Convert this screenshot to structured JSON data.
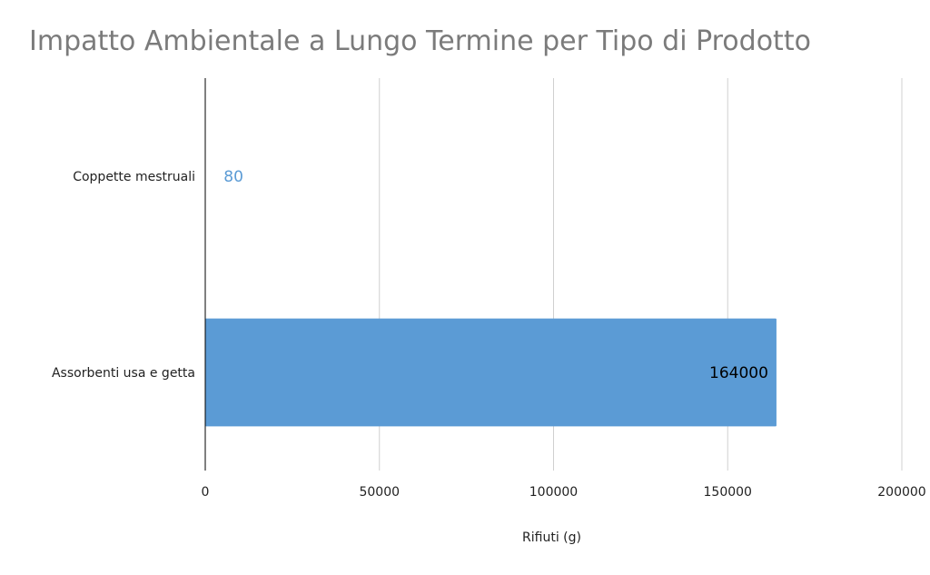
{
  "chart_data": {
    "type": "bar",
    "orientation": "horizontal",
    "title": "Impatto Ambientale a Lungo Termine per Tipo di Prodotto",
    "xlabel": "Rifiuti (g)",
    "ylabel": "",
    "categories": [
      "Coppette mestruali",
      "Assorbenti usa e getta"
    ],
    "values": [
      80,
      164000
    ],
    "data_labels": [
      "80",
      "164000"
    ],
    "xlim": [
      0,
      200000
    ],
    "x_ticks": [
      0,
      50000,
      100000,
      150000,
      200000
    ],
    "x_tick_labels": [
      "0",
      "50000",
      "100000",
      "150000",
      "200000"
    ],
    "grid": "vertical",
    "legend": "none",
    "colors": {
      "bar": "#5b9bd5",
      "label_outside": "#5b9bd5",
      "label_inside": "#000000",
      "grid": "#d0d0d0",
      "axis": "#000000",
      "title": "#7b7b7b"
    }
  }
}
